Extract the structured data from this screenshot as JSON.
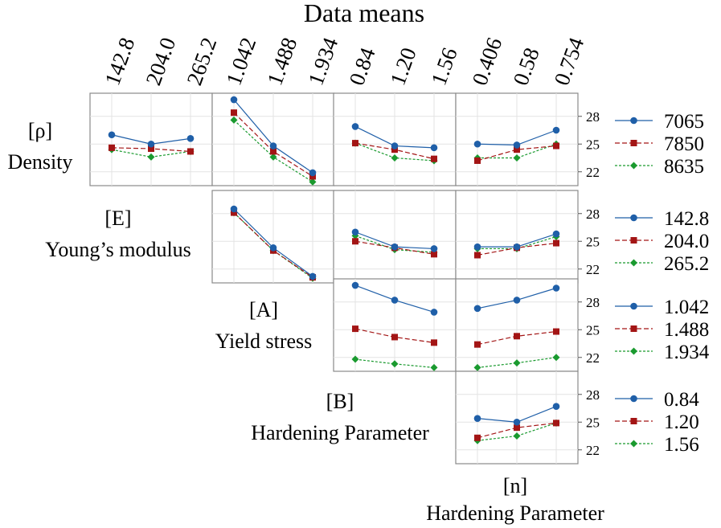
{
  "chart_data": {
    "type": "line",
    "title": "Data means",
    "y_ticks": [
      "28",
      "25",
      "22"
    ],
    "ylim": [
      20.5,
      30.5
    ],
    "factors": [
      {
        "id": "rho",
        "symbol": "[ρ]",
        "name": "Density",
        "levels": [
          "7065",
          "7850",
          "8635"
        ]
      },
      {
        "id": "E",
        "symbol": "[E]",
        "name": "Young’s modulus",
        "levels": [
          "142.8",
          "204.0",
          "265.2"
        ]
      },
      {
        "id": "A",
        "symbol": "[A]",
        "name": "Yield stress",
        "levels": [
          "1.042",
          "1.488",
          "1.934"
        ]
      },
      {
        "id": "B",
        "symbol": "[B]",
        "name": "Hardening Parameter",
        "levels": [
          "0.84",
          "1.20",
          "1.56"
        ]
      },
      {
        "id": "n",
        "symbol": "[n]",
        "name": "Hardening Parameter",
        "levels": [
          "0.406",
          "0.58",
          "0.754"
        ]
      }
    ],
    "series_colors": [
      "#1f5fa8",
      "#a31515",
      "#1a9a2f"
    ],
    "series_markers": [
      "circle",
      "square",
      "diamond"
    ],
    "panels": [
      {
        "row": "rho",
        "col": "E",
        "series": [
          [
            26.0,
            25.0,
            25.6
          ],
          [
            24.6,
            24.5,
            24.2
          ],
          [
            24.4,
            23.6,
            24.2
          ]
        ]
      },
      {
        "row": "rho",
        "col": "A",
        "series": [
          [
            29.8,
            24.8,
            21.9
          ],
          [
            28.4,
            24.2,
            21.5
          ],
          [
            27.6,
            23.6,
            20.9
          ]
        ]
      },
      {
        "row": "rho",
        "col": "B",
        "series": [
          [
            26.9,
            24.8,
            24.6
          ],
          [
            25.1,
            24.4,
            23.4
          ],
          [
            25.1,
            23.5,
            23.2
          ]
        ]
      },
      {
        "row": "rho",
        "col": "n",
        "series": [
          [
            25.0,
            24.9,
            26.5
          ],
          [
            23.2,
            24.4,
            24.8
          ],
          [
            23.5,
            23.5,
            25.0
          ]
        ]
      },
      {
        "row": "E",
        "col": "A",
        "series": [
          [
            28.5,
            24.3,
            21.2
          ],
          [
            28.1,
            24.0,
            21.1
          ],
          [
            28.1,
            24.0,
            21.0
          ]
        ]
      },
      {
        "row": "E",
        "col": "B",
        "series": [
          [
            26.0,
            24.4,
            24.2
          ],
          [
            25.0,
            24.3,
            23.6
          ],
          [
            25.6,
            24.1,
            23.8
          ]
        ]
      },
      {
        "row": "E",
        "col": "n",
        "series": [
          [
            24.4,
            24.4,
            25.8
          ],
          [
            23.5,
            24.3,
            24.8
          ],
          [
            24.2,
            24.2,
            25.5
          ]
        ]
      },
      {
        "row": "A",
        "col": "B",
        "series": [
          [
            29.8,
            28.2,
            26.9
          ],
          [
            25.1,
            24.2,
            23.6
          ],
          [
            21.8,
            21.3,
            20.9
          ]
        ]
      },
      {
        "row": "A",
        "col": "n",
        "series": [
          [
            27.3,
            28.2,
            29.5
          ],
          [
            23.4,
            24.3,
            24.8
          ],
          [
            20.9,
            21.4,
            22.0
          ]
        ]
      },
      {
        "row": "B",
        "col": "n",
        "series": [
          [
            25.4,
            25.0,
            26.7
          ],
          [
            23.3,
            24.4,
            24.9
          ],
          [
            23.0,
            23.5,
            24.9
          ]
        ]
      }
    ]
  }
}
